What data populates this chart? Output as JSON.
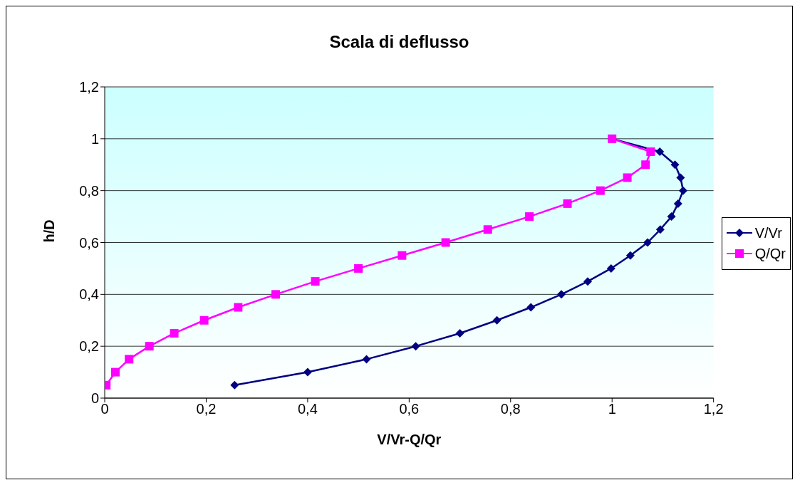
{
  "chart_data": {
    "type": "line",
    "title": "Scala di deflusso",
    "xlabel": "V/Vr-Q/Qr",
    "ylabel": "h/D",
    "xlim": [
      0,
      1.2
    ],
    "xticks": [
      0,
      {
        "value": 0.2,
        "label": "0,2"
      },
      {
        "value": 0.4,
        "label": "0,4"
      },
      {
        "value": 0.6,
        "label": "0,6"
      },
      {
        "value": 0.8,
        "label": "0,8"
      },
      1,
      {
        "value": 1.2,
        "label": "1,2"
      }
    ],
    "ylim": [
      0,
      1.2
    ],
    "yticks": [
      0,
      {
        "value": 0.2,
        "label": "0,2"
      },
      {
        "value": 0.4,
        "label": "0,4"
      },
      {
        "value": 0.6,
        "label": "0,6"
      },
      {
        "value": 0.8,
        "label": "0,8"
      },
      1,
      {
        "value": 1.2,
        "label": "1,2"
      }
    ],
    "grid": "y",
    "legend": "right",
    "line_style": "solid",
    "series": [
      {
        "name": "V/Vr",
        "color": "#000080",
        "marker": "diamond",
        "x": [
          0.256,
          0.4,
          0.516,
          0.613,
          0.7,
          0.773,
          0.84,
          0.9,
          0.952,
          0.998,
          1.036,
          1.07,
          1.095,
          1.117,
          1.13,
          1.14,
          1.135,
          1.124,
          1.094,
          1
        ],
        "values": [
          0.05,
          0.1,
          0.15,
          0.2,
          0.25,
          0.3,
          0.35,
          0.4,
          0.45,
          0.5,
          0.55,
          0.6,
          0.65,
          0.7,
          0.75,
          0.8,
          0.85,
          0.9,
          0.95,
          1
        ]
      },
      {
        "name": "Q/Qr",
        "color": "#ff00ff",
        "marker": "square",
        "x": [
          0.003,
          0.021,
          0.048,
          0.088,
          0.137,
          0.196,
          0.263,
          0.337,
          0.415,
          0.5,
          0.586,
          0.672,
          0.755,
          0.837,
          0.912,
          0.977,
          1.03,
          1.066,
          1.076,
          1
        ],
        "values": [
          0.05,
          0.1,
          0.15,
          0.2,
          0.25,
          0.3,
          0.35,
          0.4,
          0.45,
          0.5,
          0.55,
          0.6,
          0.65,
          0.7,
          0.75,
          0.8,
          0.85,
          0.9,
          0.95,
          1
        ]
      }
    ]
  }
}
